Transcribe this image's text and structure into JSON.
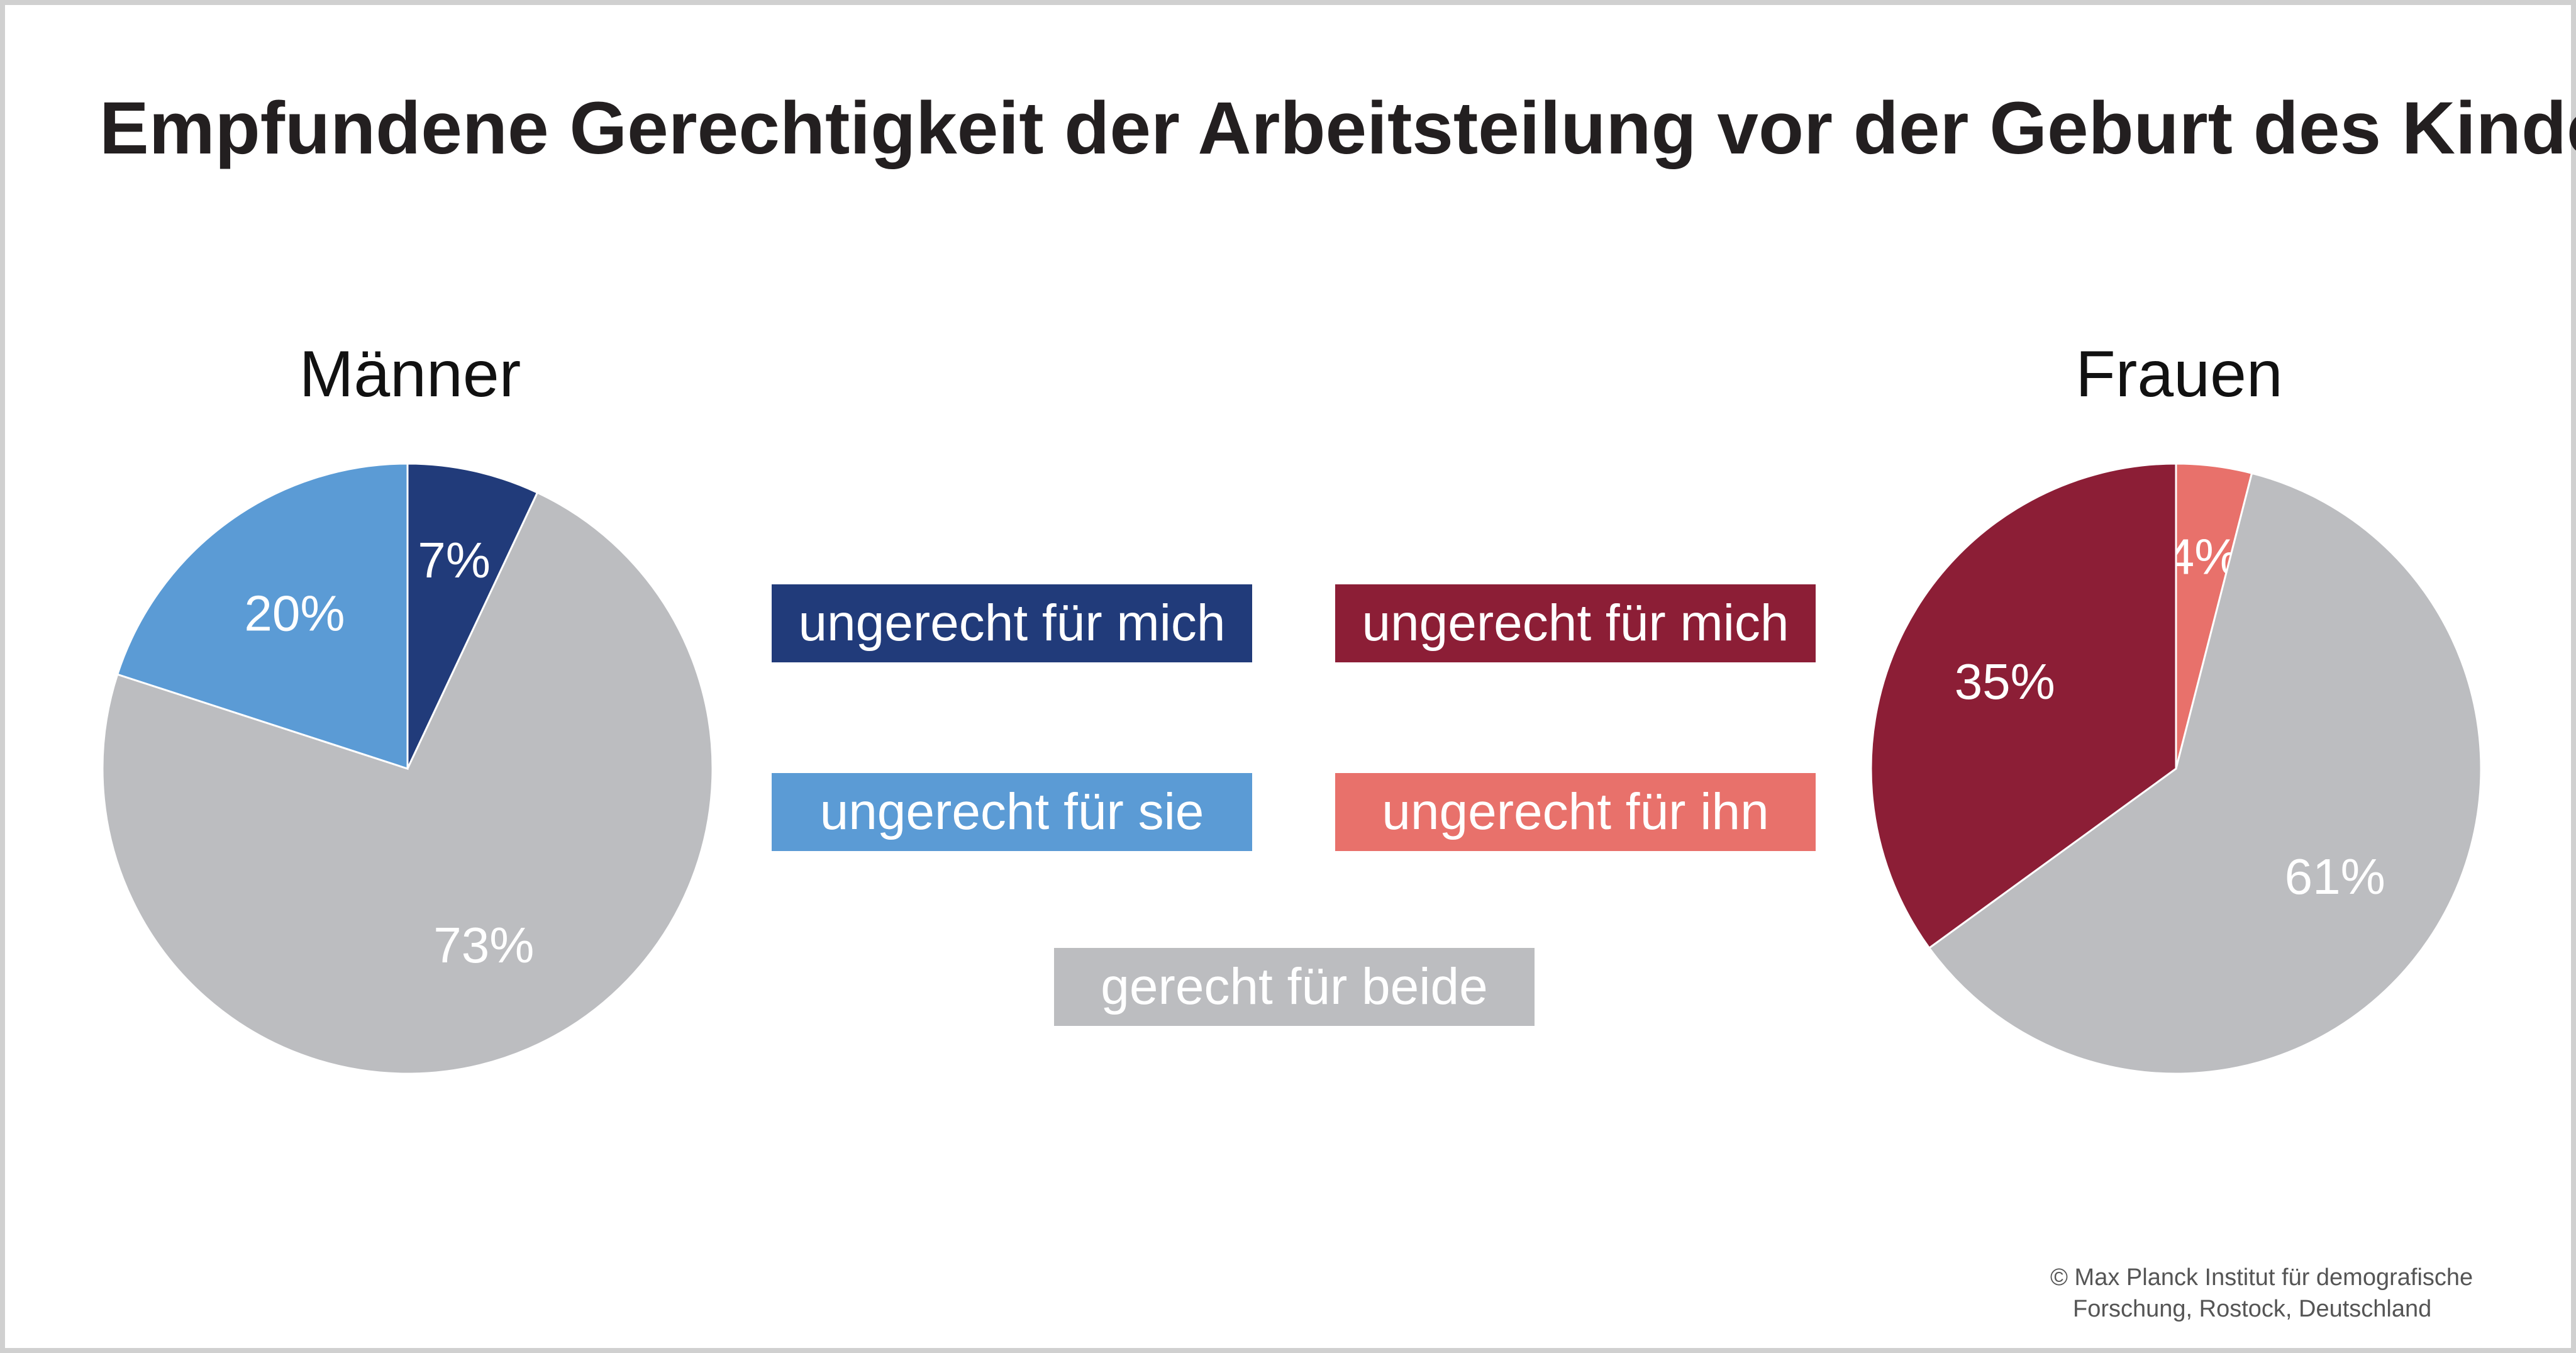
{
  "title": "Empfundene Gerechtigkeit der Arbeitsteilung vor der Geburt des Kindes",
  "colors": {
    "men_mich": "#213b7a",
    "men_sie": "#5b9bd5",
    "neutral": "#bcbdc0",
    "women_mich": "#8c1e36",
    "women_ihn": "#e8716b"
  },
  "legend": {
    "men_mich": "ungerecht für mich",
    "men_sie": "ungerecht für sie",
    "women_mich": "ungerecht für mich",
    "women_ihn": "ungerecht für ihn",
    "both": "gerecht für beide"
  },
  "chart_data": [
    {
      "type": "pie",
      "title": "Männer",
      "slices": [
        {
          "label": "ungerecht für mich",
          "value": 7,
          "text": "7%",
          "color": "#213b7a"
        },
        {
          "label": "gerecht für beide",
          "value": 73,
          "text": "73%",
          "color": "#bcbdc0"
        },
        {
          "label": "ungerecht für sie",
          "value": 20,
          "text": "20%",
          "color": "#5b9bd5"
        }
      ]
    },
    {
      "type": "pie",
      "title": "Frauen",
      "slices": [
        {
          "label": "ungerecht für ihn",
          "value": 4,
          "text": "4%",
          "color": "#e8716b"
        },
        {
          "label": "gerecht für beide",
          "value": 61,
          "text": "61%",
          "color": "#bcbdc0"
        },
        {
          "label": "ungerecht für mich",
          "value": 35,
          "text": "35%",
          "color": "#8c1e36"
        }
      ]
    }
  ],
  "credit": {
    "line1": "© Max Planck Institut für demografische",
    "line2": "Forschung, Rostock, Deutschland"
  }
}
